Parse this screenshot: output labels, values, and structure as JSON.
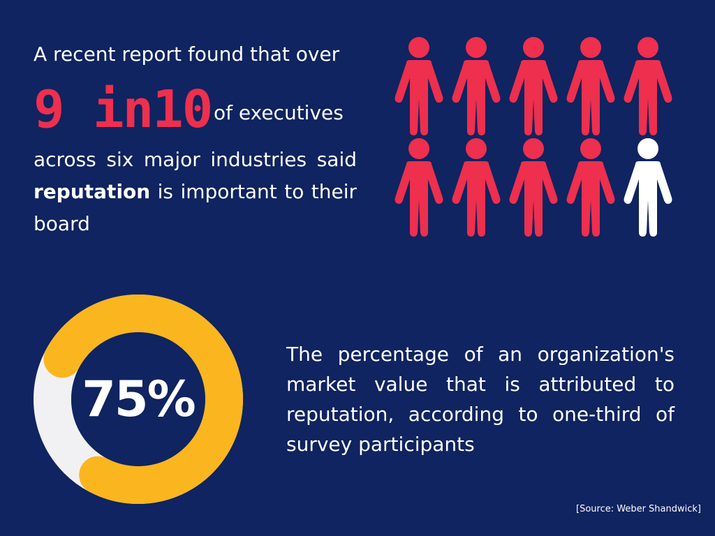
{
  "intro": {
    "line1": "A recent report found that over",
    "stat": "9 in10",
    "stat_tail": "of executives",
    "body_pre": "across six major industries said ",
    "body_bold": "reputation",
    "body_post": " is important to their board"
  },
  "people": {
    "icon": "person-icon",
    "total": 10,
    "highlighted": 9,
    "highlight_color": "#ee2f4e",
    "other_color": "#ffffff"
  },
  "donut": {
    "value_label": "75%",
    "percent": 75,
    "fill_color": "#fbb61f",
    "track_color": "#f1f1f3",
    "inner_color": "#0f2460"
  },
  "description": "The percentage of an organization's market value that is attributed to reputation, according to one-third of survey participants",
  "source": "[Source: Weber Shandwick]",
  "colors": {
    "background": "#0f2460",
    "accent_red": "#ee2f4e",
    "accent_yellow": "#fbb61f"
  }
}
